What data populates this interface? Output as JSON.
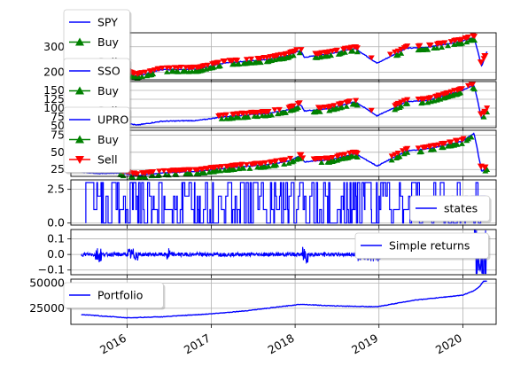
{
  "colors": {
    "price": "#0000ff",
    "buy": "#008000",
    "sell": "#ff0000",
    "grid": "#b0b0b0",
    "axis": "#000000"
  },
  "chart_data": [
    {
      "type": "line",
      "series": [
        {
          "name": "SPY",
          "kind": "price"
        },
        {
          "name": "Buy",
          "kind": "buy"
        },
        {
          "name": "Sell",
          "kind": "sell"
        }
      ],
      "ylim": [
        170,
        355
      ],
      "yticks": [
        200,
        300
      ],
      "ytick_labels": [
        "200",
        "300"
      ],
      "legend_position": "top-left",
      "grid": true,
      "points": [
        [
          "2015-06-01",
          210
        ],
        [
          "2015-09-01",
          198
        ],
        [
          "2015-12-01",
          208
        ],
        [
          "2016-02-11",
          184
        ],
        [
          "2016-06-01",
          210
        ],
        [
          "2016-11-01",
          212
        ],
        [
          "2017-03-01",
          236
        ],
        [
          "2017-09-01",
          250
        ],
        [
          "2017-12-01",
          266
        ],
        [
          "2018-01-26",
          286
        ],
        [
          "2018-02-09",
          258
        ],
        [
          "2018-06-01",
          273
        ],
        [
          "2018-09-20",
          293
        ],
        [
          "2018-12-24",
          235
        ],
        [
          "2019-04-30",
          294
        ],
        [
          "2019-08-01",
          298
        ],
        [
          "2019-12-31",
          322
        ],
        [
          "2020-02-19",
          338
        ],
        [
          "2020-03-23",
          222
        ],
        [
          "2020-04-15",
          280
        ]
      ]
    },
    {
      "type": "line",
      "series": [
        {
          "name": "SSO",
          "kind": "price"
        },
        {
          "name": "Buy",
          "kind": "buy"
        },
        {
          "name": "Sell",
          "kind": "sell"
        }
      ],
      "ylim": [
        45,
        175
      ],
      "yticks": [
        50,
        75,
        100,
        125,
        150
      ],
      "ytick_labels": [
        "50",
        "75",
        "100",
        "125",
        "150"
      ],
      "legend_position": "top-left",
      "grid": true,
      "points": [
        [
          "2015-06-01",
          64
        ],
        [
          "2015-09-01",
          58
        ],
        [
          "2015-12-01",
          62
        ],
        [
          "2016-02-11",
          52
        ],
        [
          "2016-06-01",
          63
        ],
        [
          "2016-11-01",
          65
        ],
        [
          "2017-03-01",
          76
        ],
        [
          "2017-09-01",
          85
        ],
        [
          "2017-12-01",
          95
        ],
        [
          "2018-01-26",
          110
        ],
        [
          "2018-02-09",
          92
        ],
        [
          "2018-06-01",
          99
        ],
        [
          "2018-09-20",
          118
        ],
        [
          "2018-12-24",
          78
        ],
        [
          "2019-04-30",
          118
        ],
        [
          "2019-08-01",
          122
        ],
        [
          "2019-12-31",
          150
        ],
        [
          "2020-02-19",
          165
        ],
        [
          "2020-03-23",
          70
        ],
        [
          "2020-04-15",
          95
        ]
      ]
    },
    {
      "type": "line",
      "series": [
        {
          "name": "UPRO",
          "kind": "price"
        },
        {
          "name": "Buy",
          "kind": "buy"
        },
        {
          "name": "Sell",
          "kind": "sell"
        }
      ],
      "ylim": [
        15,
        82
      ],
      "yticks": [
        25,
        50,
        75
      ],
      "ytick_labels": [
        "25",
        "50",
        "75"
      ],
      "legend_position": "top-left",
      "grid": true,
      "points": [
        [
          "2015-06-01",
          22
        ],
        [
          "2015-09-01",
          19
        ],
        [
          "2015-12-01",
          20
        ],
        [
          "2016-02-11",
          16
        ],
        [
          "2016-06-01",
          20
        ],
        [
          "2016-11-01",
          22
        ],
        [
          "2017-03-01",
          27
        ],
        [
          "2017-09-01",
          32
        ],
        [
          "2017-12-01",
          37
        ],
        [
          "2018-01-26",
          45
        ],
        [
          "2018-02-09",
          36
        ],
        [
          "2018-06-01",
          39
        ],
        [
          "2018-09-20",
          48
        ],
        [
          "2018-12-24",
          30
        ],
        [
          "2019-04-30",
          52
        ],
        [
          "2019-08-01",
          55
        ],
        [
          "2019-12-31",
          66
        ],
        [
          "2020-02-19",
          78
        ],
        [
          "2020-03-23",
          22
        ],
        [
          "2020-04-15",
          28
        ]
      ]
    },
    {
      "type": "line",
      "series": [
        {
          "name": "states",
          "kind": "states"
        }
      ],
      "ylim": [
        -0.15,
        3.2
      ],
      "yticks": [
        0.0,
        2.5
      ],
      "ytick_labels": [
        "0.0",
        "2.5"
      ],
      "legend_position": "lower-right",
      "grid": true,
      "values_note": "series switches between regime states 0, 1, 2 and 3"
    },
    {
      "type": "line",
      "series": [
        {
          "name": "Simple returns",
          "kind": "returns"
        }
      ],
      "ylim": [
        -0.13,
        0.16
      ],
      "yticks": [
        -0.1,
        0.0,
        0.1
      ],
      "ytick_labels": [
        "−0.1",
        "0.0",
        "0.1"
      ],
      "legend_position": "upper-right",
      "grid": true
    },
    {
      "type": "line",
      "series": [
        {
          "name": "Portfolio",
          "kind": "portfolio"
        }
      ],
      "ylim": [
        9000,
        54000
      ],
      "yticks": [
        25000,
        50000
      ],
      "ytick_labels": [
        "25000",
        "50000"
      ],
      "legend_position": "upper-left",
      "grid": true,
      "points": [
        [
          "2015-06-01",
          19000
        ],
        [
          "2015-09-01",
          17500
        ],
        [
          "2016-01-01",
          15500
        ],
        [
          "2016-06-01",
          16500
        ],
        [
          "2017-01-01",
          19500
        ],
        [
          "2017-06-01",
          22500
        ],
        [
          "2018-01-26",
          29000
        ],
        [
          "2018-06-01",
          27500
        ],
        [
          "2018-12-24",
          26500
        ],
        [
          "2019-06-01",
          33000
        ],
        [
          "2019-12-31",
          38000
        ],
        [
          "2020-02-19",
          42500
        ],
        [
          "2020-03-15",
          47000
        ],
        [
          "2020-04-01",
          52000
        ]
      ]
    }
  ],
  "x_axis": {
    "ticks": [
      "2016",
      "2017",
      "2018",
      "2019",
      "2020"
    ],
    "tick_dates": [
      "2016-01-01",
      "2017-01-01",
      "2018-01-01",
      "2019-01-01",
      "2020-01-01"
    ],
    "xlim": [
      "2015-05-01",
      "2020-05-25"
    ]
  }
}
